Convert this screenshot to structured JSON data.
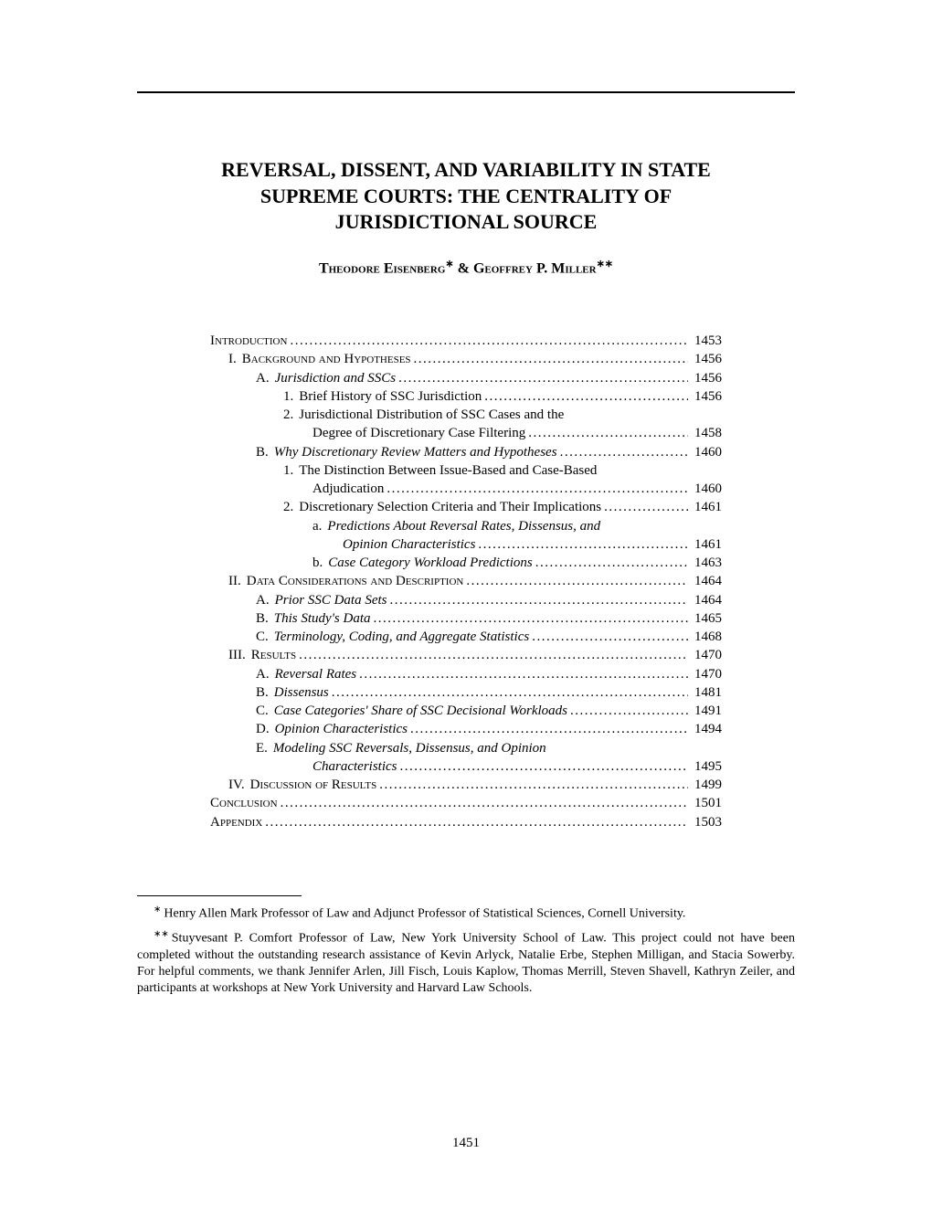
{
  "title_line1": "REVERSAL, DISSENT, AND VARIABILITY IN STATE",
  "title_line2": "SUPREME COURTS: THE CENTRALITY OF",
  "title_line3": "JURISDICTIONAL SOURCE",
  "author1": "Theodore Eisenberg",
  "author_sep": " & ",
  "author2": "Geoffrey P. Miller",
  "author1_mark": "∗",
  "author2_mark": "∗∗",
  "toc": [
    {
      "indent": "ind-0",
      "marker": "",
      "label": "Introduction",
      "style": "smallcaps",
      "page": "1453"
    },
    {
      "indent": "ind-1",
      "marker": "I.",
      "label": "Background and Hypotheses",
      "style": "smallcaps",
      "page": "1456"
    },
    {
      "indent": "ind-2",
      "marker": "A.",
      "label": "Jurisdiction and SSCs",
      "style": "italic",
      "page": "1456"
    },
    {
      "indent": "ind-3",
      "marker": "1.",
      "label": "Brief History of SSC Jurisdiction",
      "style": "",
      "page": "1456"
    },
    {
      "indent": "ind-3",
      "marker": "2.",
      "label": "Jurisdictional Distribution of SSC Cases and the",
      "style": "",
      "page": "",
      "noleader": true
    },
    {
      "indent": "ind-cont-3",
      "marker": "",
      "label": "Degree of Discretionary Case Filtering",
      "style": "",
      "page": "1458"
    },
    {
      "indent": "ind-2",
      "marker": "B.",
      "label": "Why Discretionary Review Matters and Hypotheses",
      "style": "italic",
      "page": "1460"
    },
    {
      "indent": "ind-3",
      "marker": "1.",
      "label": "The Distinction Between Issue-Based and Case-Based",
      "style": "",
      "page": "",
      "noleader": true
    },
    {
      "indent": "ind-cont-3",
      "marker": "",
      "label": "Adjudication",
      "style": "",
      "page": "1460"
    },
    {
      "indent": "ind-3",
      "marker": "2.",
      "label": "Discretionary Selection Criteria and Their Implications",
      "style": "",
      "page": "1461"
    },
    {
      "indent": "ind-4",
      "marker": "a.",
      "label": "Predictions About Reversal Rates, Dissensus, and",
      "style": "italic",
      "page": "",
      "noleader": true
    },
    {
      "indent": "ind-cont-4",
      "marker": "",
      "label": "Opinion Characteristics",
      "style": "italic",
      "page": "1461"
    },
    {
      "indent": "ind-4",
      "marker": "b.",
      "label": "Case Category Workload Predictions",
      "style": "italic",
      "page": "1463"
    },
    {
      "indent": "ind-1",
      "marker": "II.",
      "label": "Data Considerations and Description",
      "style": "smallcaps",
      "page": "1464"
    },
    {
      "indent": "ind-2",
      "marker": "A.",
      "label": "Prior SSC Data Sets",
      "style": "italic",
      "page": "1464"
    },
    {
      "indent": "ind-2",
      "marker": "B.",
      "label": "This Study's Data",
      "style": "italic",
      "page": "1465"
    },
    {
      "indent": "ind-2",
      "marker": "C.",
      "label": "Terminology, Coding, and Aggregate Statistics",
      "style": "italic",
      "page": "1468"
    },
    {
      "indent": "ind-1",
      "marker": "III.",
      "label": "Results",
      "style": "smallcaps",
      "page": "1470"
    },
    {
      "indent": "ind-2",
      "marker": "A.",
      "label": "Reversal Rates",
      "style": "italic",
      "page": "1470"
    },
    {
      "indent": "ind-2",
      "marker": "B.",
      "label": "Dissensus",
      "style": "italic",
      "page": "1481"
    },
    {
      "indent": "ind-2",
      "marker": "C.",
      "label": "Case Categories' Share of SSC Decisional Workloads",
      "style": "italic",
      "page": "1491"
    },
    {
      "indent": "ind-2",
      "marker": "D.",
      "label": "Opinion Characteristics",
      "style": "italic",
      "page": "1494"
    },
    {
      "indent": "ind-2",
      "marker": "E.",
      "label": "Modeling SSC Reversals, Dissensus, and Opinion",
      "style": "italic",
      "page": "",
      "noleader": true
    },
    {
      "indent": "ind-cont-3",
      "marker": "",
      "label": "Characteristics",
      "style": "italic",
      "page": "1495"
    },
    {
      "indent": "ind-1",
      "marker": "IV.",
      "label": "Discussion of Results",
      "style": "smallcaps",
      "page": "1499"
    },
    {
      "indent": "ind-0",
      "marker": "",
      "label": "Conclusion",
      "style": "smallcaps",
      "page": "1501"
    },
    {
      "indent": "ind-0",
      "marker": "",
      "label": "Appendix",
      "style": "smallcaps",
      "page": "1503"
    }
  ],
  "footnote1_mark": "∗",
  "footnote1": "Henry Allen Mark Professor of Law and Adjunct Professor of Statistical Sciences, Cornell University.",
  "footnote2_mark": "∗∗",
  "footnote2": "Stuyvesant P. Comfort Professor of Law, New York University School of Law.  This project could not have been completed without the outstanding research assistance of Kevin Arlyck, Natalie Erbe, Stephen Milligan, and Stacia Sowerby.  For helpful comments, we thank Jennifer Arlen, Jill Fisch, Louis Kaplow, Thomas Merrill, Steven Shavell, Kathryn Zeiler, and participants at workshops at New York University and Harvard Law Schools.",
  "page_number": "1451"
}
